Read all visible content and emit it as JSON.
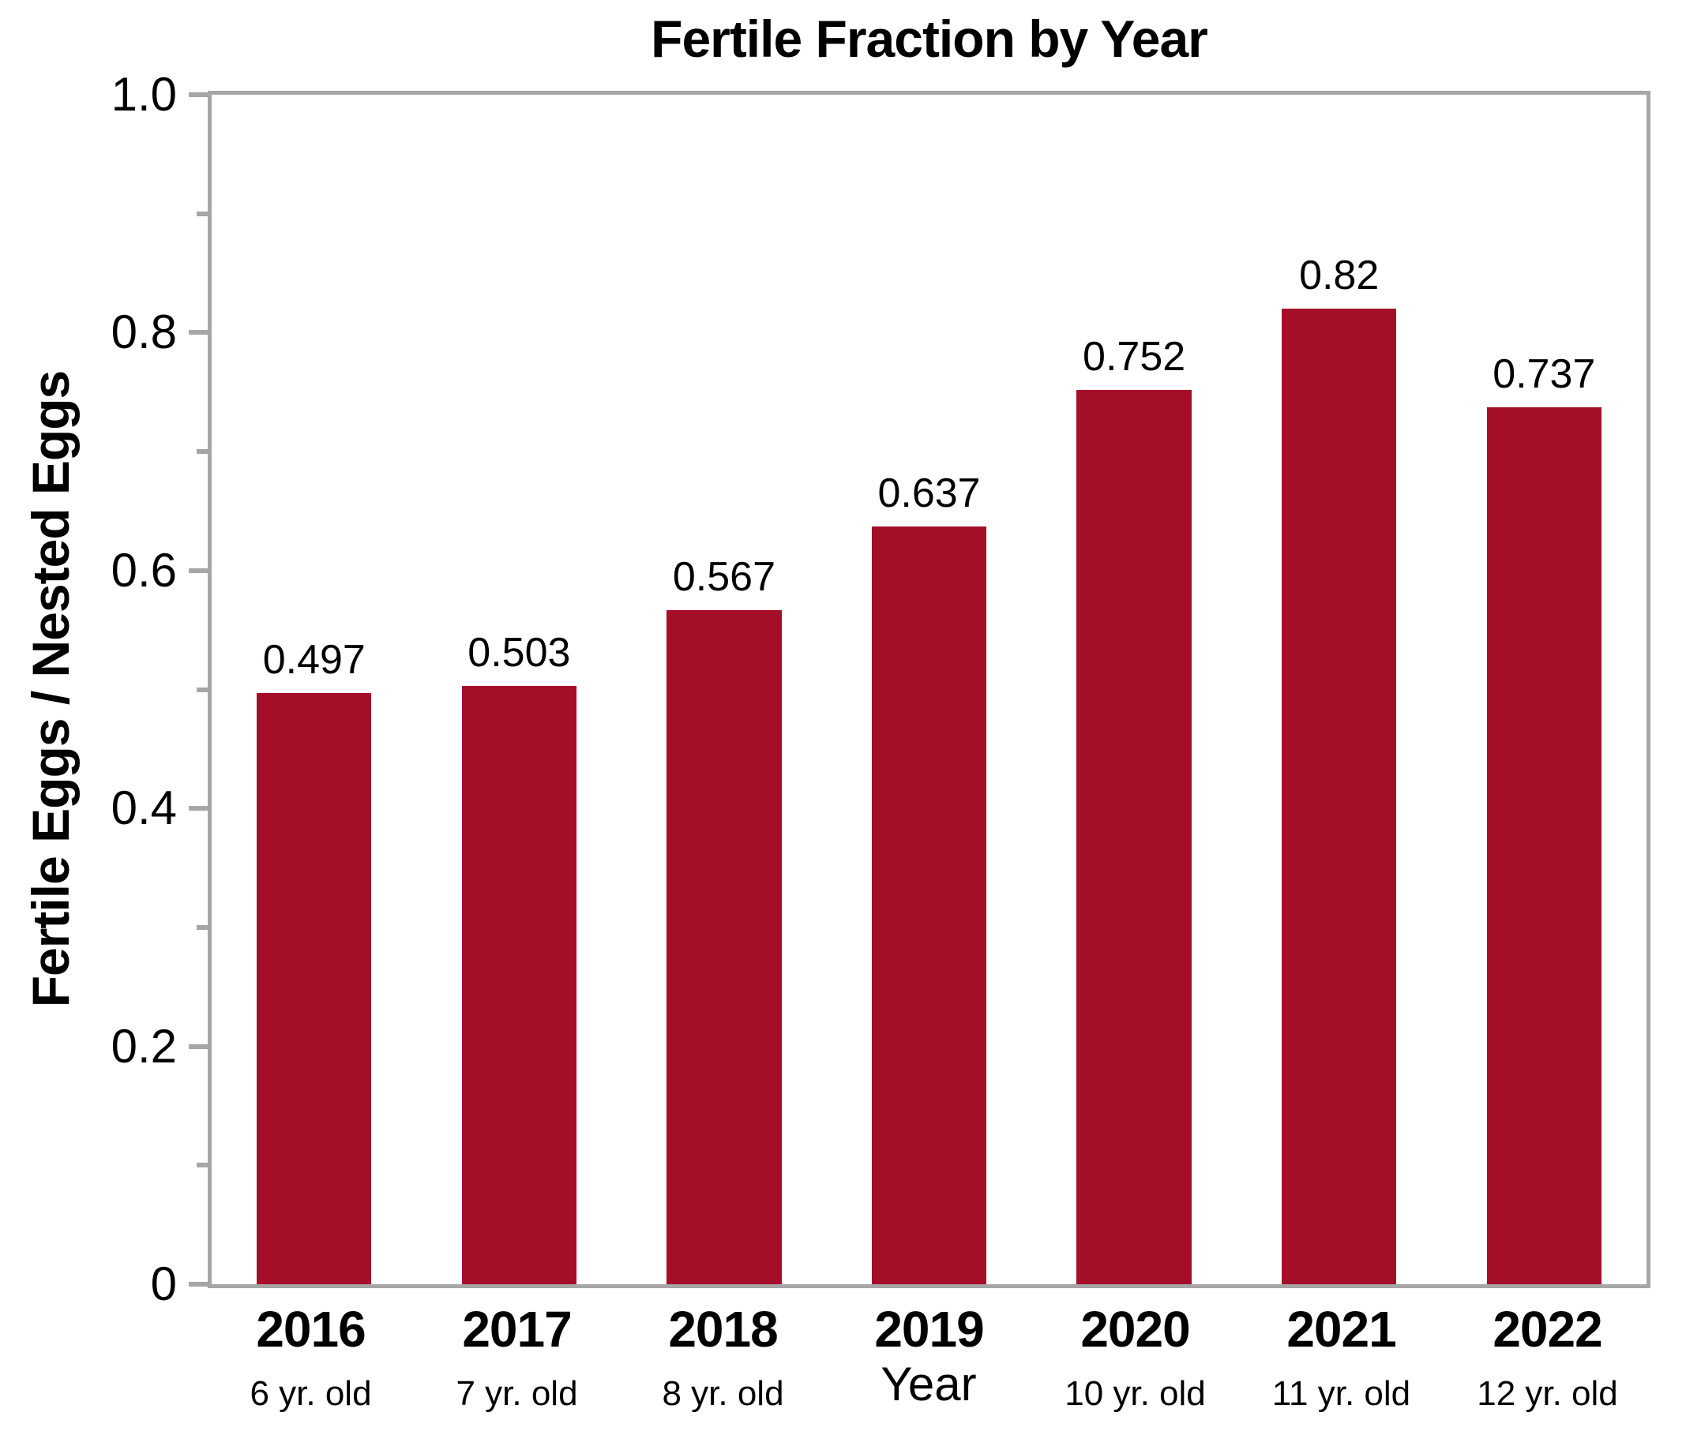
{
  "chart_data": {
    "type": "bar",
    "title": "Fertile Fraction by Year",
    "xlabel": "Year",
    "ylabel": "Fertile Eggs / Nested Eggs",
    "categories": [
      "2016",
      "2017",
      "2018",
      "2019",
      "2020",
      "2021",
      "2022"
    ],
    "age_labels": [
      "6 yr. old",
      "7 yr. old",
      "8 yr. old",
      "",
      "10 yr. old",
      "11 yr. old",
      "12 yr. old"
    ],
    "values": [
      0.497,
      0.503,
      0.567,
      0.637,
      0.752,
      0.82,
      0.737
    ],
    "value_labels": [
      "0.497",
      "0.503",
      "0.567",
      "0.637",
      "0.752",
      "0.82",
      "0.737"
    ],
    "ylim": [
      0,
      1.0
    ],
    "yticks": [
      {
        "value": 1.0,
        "label": "1.0"
      },
      {
        "value": 0.8,
        "label": "0.8"
      },
      {
        "value": 0.6,
        "label": "0.6"
      },
      {
        "value": 0.4,
        "label": "0.4"
      },
      {
        "value": 0.2,
        "label": "0.2"
      },
      {
        "value": 0.0,
        "label": "0"
      }
    ],
    "minor_yticks": [
      0.9,
      0.7,
      0.5,
      0.3,
      0.1
    ],
    "grid": "off",
    "legend": "none",
    "bar_color": "#A50E28",
    "axis_color": "#A6A6A6",
    "text_color": "#000000"
  }
}
